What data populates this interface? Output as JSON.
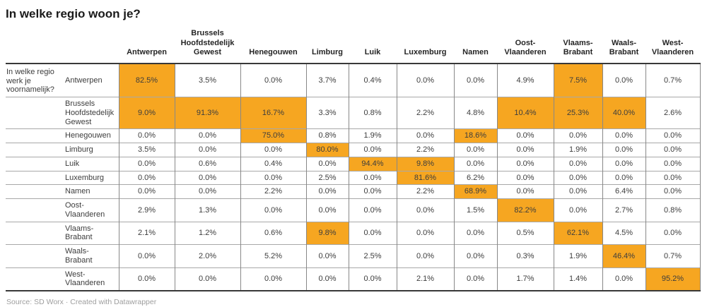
{
  "title": "In welke regio woon je?",
  "footer": {
    "source": "Source: SD Worx · Created with Datawrapper"
  },
  "colors": {
    "highlight": "#f6a621",
    "dark_rule": "#383838",
    "grid_horizontal": "#a8a8a8",
    "grid_vertical": "#888888",
    "title_text": "#1a1a1a",
    "cell_text": "#3d3d3d",
    "footer_text": "#9e9e9e"
  },
  "chart_data": {
    "type": "heatmap",
    "title": "In welke regio woon je?",
    "row_group_label": "In welke regio werk je voornamelijk?",
    "value_suffix": "%",
    "value_decimals": 1,
    "highlight_threshold": 7.5,
    "highlight_color": "#f6a621",
    "columns": [
      "Antwerpen",
      "Brussels Hoofdstedelijk Gewest",
      "Henegouwen",
      "Limburg",
      "Luik",
      "Luxemburg",
      "Namen",
      "Oost-Vlaanderen",
      "Vlaams-Brabant",
      "Waals-Brabant",
      "West-Vlaanderen"
    ],
    "rows": [
      {
        "label": "Antwerpen",
        "values": [
          82.5,
          3.5,
          0.0,
          3.7,
          0.4,
          0.0,
          0.0,
          4.9,
          7.5,
          0.0,
          0.7
        ]
      },
      {
        "label": "Brussels Hoofdstedelijk Gewest",
        "values": [
          9.0,
          91.3,
          16.7,
          3.3,
          0.8,
          2.2,
          4.8,
          10.4,
          25.3,
          40.0,
          2.6
        ]
      },
      {
        "label": "Henegouwen",
        "values": [
          0.0,
          0.0,
          75.0,
          0.8,
          1.9,
          0.0,
          18.6,
          0.0,
          0.0,
          0.0,
          0.0
        ]
      },
      {
        "label": "Limburg",
        "values": [
          3.5,
          0.0,
          0.0,
          80.0,
          0.0,
          2.2,
          0.0,
          0.0,
          1.9,
          0.0,
          0.0
        ]
      },
      {
        "label": "Luik",
        "values": [
          0.0,
          0.6,
          0.4,
          0.0,
          94.4,
          9.8,
          0.0,
          0.0,
          0.0,
          0.0,
          0.0
        ]
      },
      {
        "label": "Luxemburg",
        "values": [
          0.0,
          0.0,
          0.0,
          2.5,
          0.0,
          81.6,
          6.2,
          0.0,
          0.0,
          0.0,
          0.0
        ]
      },
      {
        "label": "Namen",
        "values": [
          0.0,
          0.0,
          2.2,
          0.0,
          0.0,
          2.2,
          68.9,
          0.0,
          0.0,
          6.4,
          0.0
        ]
      },
      {
        "label": "Oost-Vlaanderen",
        "values": [
          2.9,
          1.3,
          0.0,
          0.0,
          0.0,
          0.0,
          1.5,
          82.2,
          0.0,
          2.7,
          0.8
        ]
      },
      {
        "label": "Vlaams-Brabant",
        "values": [
          2.1,
          1.2,
          0.6,
          9.8,
          0.0,
          0.0,
          0.0,
          0.5,
          62.1,
          4.5,
          0.0
        ]
      },
      {
        "label": "Waals-Brabant",
        "values": [
          0.0,
          2.0,
          5.2,
          0.0,
          2.5,
          0.0,
          0.0,
          0.3,
          1.9,
          46.4,
          0.7
        ]
      },
      {
        "label": "West-Vlaanderen",
        "values": [
          0.0,
          0.0,
          0.0,
          0.0,
          0.0,
          2.1,
          0.0,
          1.7,
          1.4,
          0.0,
          95.2
        ]
      }
    ]
  }
}
